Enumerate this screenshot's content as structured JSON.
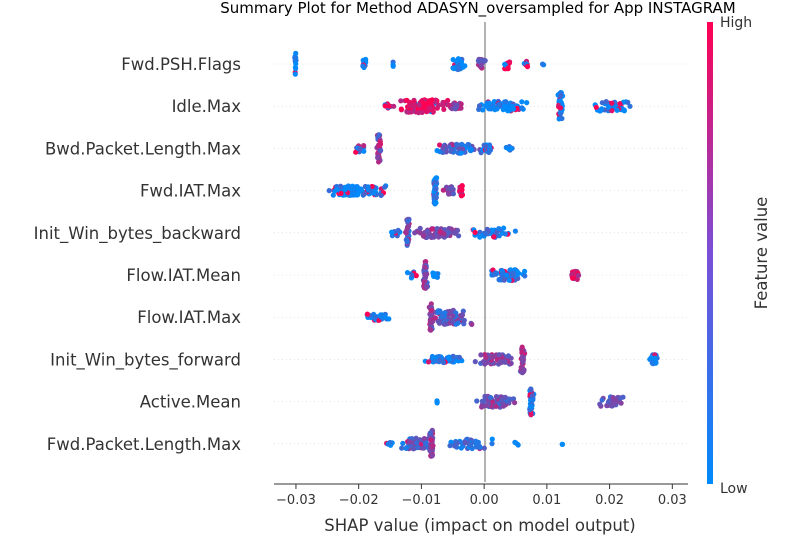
{
  "chart_data": {
    "type": "scatter",
    "title": "Summary Plot for Method ADASYN_oversampled for App INSTAGRAM",
    "xlabel": "SHAP value (impact on model output)",
    "xlim": [
      -0.0335,
      0.0325
    ],
    "xticks": [
      -0.03,
      -0.02,
      -0.01,
      0.0,
      0.01,
      0.02,
      0.03
    ],
    "xtick_labels": [
      "−0.03",
      "−0.02",
      "−0.01",
      "0.00",
      "0.01",
      "0.02",
      "0.03"
    ],
    "colorbar": {
      "label": "Feature value",
      "high": "High",
      "low": "Low",
      "colors": [
        "#008afb",
        "#ff0052"
      ]
    },
    "features": [
      {
        "name": "Fwd.PSH.Flags",
        "clusters": [
          {
            "x": -0.0301,
            "n": 14,
            "spread": 0.0001,
            "fv": 0.0,
            "h": 0.7
          },
          {
            "x": -0.0191,
            "n": 10,
            "spread": 0.0003,
            "fv": 0.0,
            "h": 0.3
          },
          {
            "x": -0.0145,
            "n": 3,
            "spread": 0.0001,
            "fv": 0.0,
            "h": 0.15
          },
          {
            "x": -0.004,
            "n": 30,
            "spread": 0.0009,
            "fv": 0.05,
            "h": 0.35
          },
          {
            "x": -0.0005,
            "n": 20,
            "spread": 0.0007,
            "fv": 0.5,
            "h": 0.3
          },
          {
            "x": 0.0036,
            "n": 16,
            "spread": 0.0008,
            "fv": 0.98,
            "h": 0.3
          },
          {
            "x": 0.0066,
            "n": 6,
            "spread": 0.0004,
            "fv": 1.0,
            "h": 0.2
          },
          {
            "x": 0.0094,
            "n": 2,
            "spread": 0.0001,
            "fv": 1.0,
            "h": 0.1
          }
        ]
      },
      {
        "name": "Idle.Max",
        "clusters": [
          {
            "x": -0.015,
            "n": 12,
            "spread": 0.0007,
            "fv": 0.95,
            "h": 0.15
          },
          {
            "x": -0.0095,
            "n": 85,
            "spread": 0.0035,
            "fv": 0.92,
            "h": 0.4
          },
          {
            "x": -0.0045,
            "n": 25,
            "spread": 0.001,
            "fv": 0.6,
            "h": 0.2
          },
          {
            "x": 0.003,
            "n": 70,
            "spread": 0.004,
            "fv": 0.08,
            "h": 0.3
          },
          {
            "x": 0.0121,
            "n": 40,
            "spread": 0.0004,
            "fv": 0.03,
            "h": 0.85
          },
          {
            "x": 0.02,
            "n": 50,
            "spread": 0.003,
            "fv": 0.03,
            "h": 0.3
          }
        ]
      },
      {
        "name": "Bwd.Packet.Length.Max",
        "clusters": [
          {
            "x": -0.02,
            "n": 12,
            "spread": 0.0007,
            "fv": 0.05,
            "h": 0.25
          },
          {
            "x": -0.0168,
            "n": 40,
            "spread": 0.0003,
            "fv": 0.7,
            "h": 0.85
          },
          {
            "x": -0.004,
            "n": 65,
            "spread": 0.0035,
            "fv": 0.2,
            "h": 0.3
          },
          {
            "x": 0.0005,
            "n": 18,
            "spread": 0.0008,
            "fv": 0.05,
            "h": 0.25
          },
          {
            "x": 0.004,
            "n": 8,
            "spread": 0.0006,
            "fv": 0.02,
            "h": 0.15
          }
        ]
      },
      {
        "name": "Fwd.IAT.Max",
        "clusters": [
          {
            "x": -0.02,
            "n": 90,
            "spread": 0.004,
            "fv": 0.04,
            "h": 0.3
          },
          {
            "x": -0.0078,
            "n": 45,
            "spread": 0.0003,
            "fv": 0.1,
            "h": 0.85
          },
          {
            "x": -0.0055,
            "n": 20,
            "spread": 0.001,
            "fv": 0.5,
            "h": 0.25
          },
          {
            "x": -0.0037,
            "n": 15,
            "spread": 0.0004,
            "fv": 0.95,
            "h": 0.35
          }
        ]
      },
      {
        "name": "Init_Win_bytes_backward",
        "clusters": [
          {
            "x": -0.0142,
            "n": 10,
            "spread": 0.0008,
            "fv": 0.1,
            "h": 0.2
          },
          {
            "x": -0.0122,
            "n": 35,
            "spread": 0.0003,
            "fv": 0.4,
            "h": 0.85
          },
          {
            "x": -0.0075,
            "n": 60,
            "spread": 0.003,
            "fv": 0.55,
            "h": 0.3
          },
          {
            "x": 0.001,
            "n": 45,
            "spread": 0.003,
            "fv": 0.08,
            "h": 0.3
          }
        ]
      },
      {
        "name": "Flow.IAT.Mean",
        "clusters": [
          {
            "x": -0.0115,
            "n": 10,
            "spread": 0.0006,
            "fv": 0.05,
            "h": 0.2
          },
          {
            "x": -0.0094,
            "n": 35,
            "spread": 0.0003,
            "fv": 0.5,
            "h": 0.85
          },
          {
            "x": -0.0075,
            "n": 10,
            "spread": 0.0006,
            "fv": 0.1,
            "h": 0.15
          },
          {
            "x": 0.004,
            "n": 70,
            "spread": 0.0025,
            "fv": 0.1,
            "h": 0.35
          },
          {
            "x": 0.0145,
            "n": 20,
            "spread": 0.0006,
            "fv": 0.85,
            "h": 0.3
          }
        ]
      },
      {
        "name": "Flow.IAT.Max",
        "clusters": [
          {
            "x": -0.017,
            "n": 30,
            "spread": 0.002,
            "fv": 0.05,
            "h": 0.2
          },
          {
            "x": -0.0085,
            "n": 40,
            "spread": 0.0003,
            "fv": 0.6,
            "h": 0.85
          },
          {
            "x": -0.0055,
            "n": 70,
            "spread": 0.0025,
            "fv": 0.35,
            "h": 0.45
          }
        ]
      },
      {
        "name": "Init_Win_bytes_forward",
        "clusters": [
          {
            "x": -0.0065,
            "n": 45,
            "spread": 0.003,
            "fv": 0.05,
            "h": 0.2
          },
          {
            "x": 0.002,
            "n": 50,
            "spread": 0.0025,
            "fv": 0.5,
            "h": 0.3
          },
          {
            "x": 0.0061,
            "n": 35,
            "spread": 0.0003,
            "fv": 0.65,
            "h": 0.85
          },
          {
            "x": 0.027,
            "n": 22,
            "spread": 0.0008,
            "fv": 0.02,
            "h": 0.3
          }
        ]
      },
      {
        "name": "Active.Mean",
        "clusters": [
          {
            "x": -0.0075,
            "n": 3,
            "spread": 0.0001,
            "fv": 0.05,
            "h": 0.1
          },
          {
            "x": 0.002,
            "n": 70,
            "spread": 0.0025,
            "fv": 0.45,
            "h": 0.35
          },
          {
            "x": 0.0075,
            "n": 40,
            "spread": 0.0003,
            "fv": 0.08,
            "h": 0.85
          },
          {
            "x": 0.0205,
            "n": 35,
            "spread": 0.002,
            "fv": 0.4,
            "h": 0.3
          }
        ]
      },
      {
        "name": "Fwd.Packet.Length.Max",
        "clusters": [
          {
            "x": -0.015,
            "n": 6,
            "spread": 0.0005,
            "fv": 0.05,
            "h": 0.15
          },
          {
            "x": -0.0105,
            "n": 55,
            "spread": 0.002,
            "fv": 0.3,
            "h": 0.35
          },
          {
            "x": -0.0084,
            "n": 40,
            "spread": 0.0003,
            "fv": 0.55,
            "h": 0.85
          },
          {
            "x": -0.0025,
            "n": 50,
            "spread": 0.003,
            "fv": 0.15,
            "h": 0.3
          },
          {
            "x": 0.005,
            "n": 4,
            "spread": 0.0005,
            "fv": 0.05,
            "h": 0.1
          },
          {
            "x": 0.0125,
            "n": 2,
            "spread": 0.0001,
            "fv": 0.05,
            "h": 0.05
          }
        ]
      }
    ]
  }
}
